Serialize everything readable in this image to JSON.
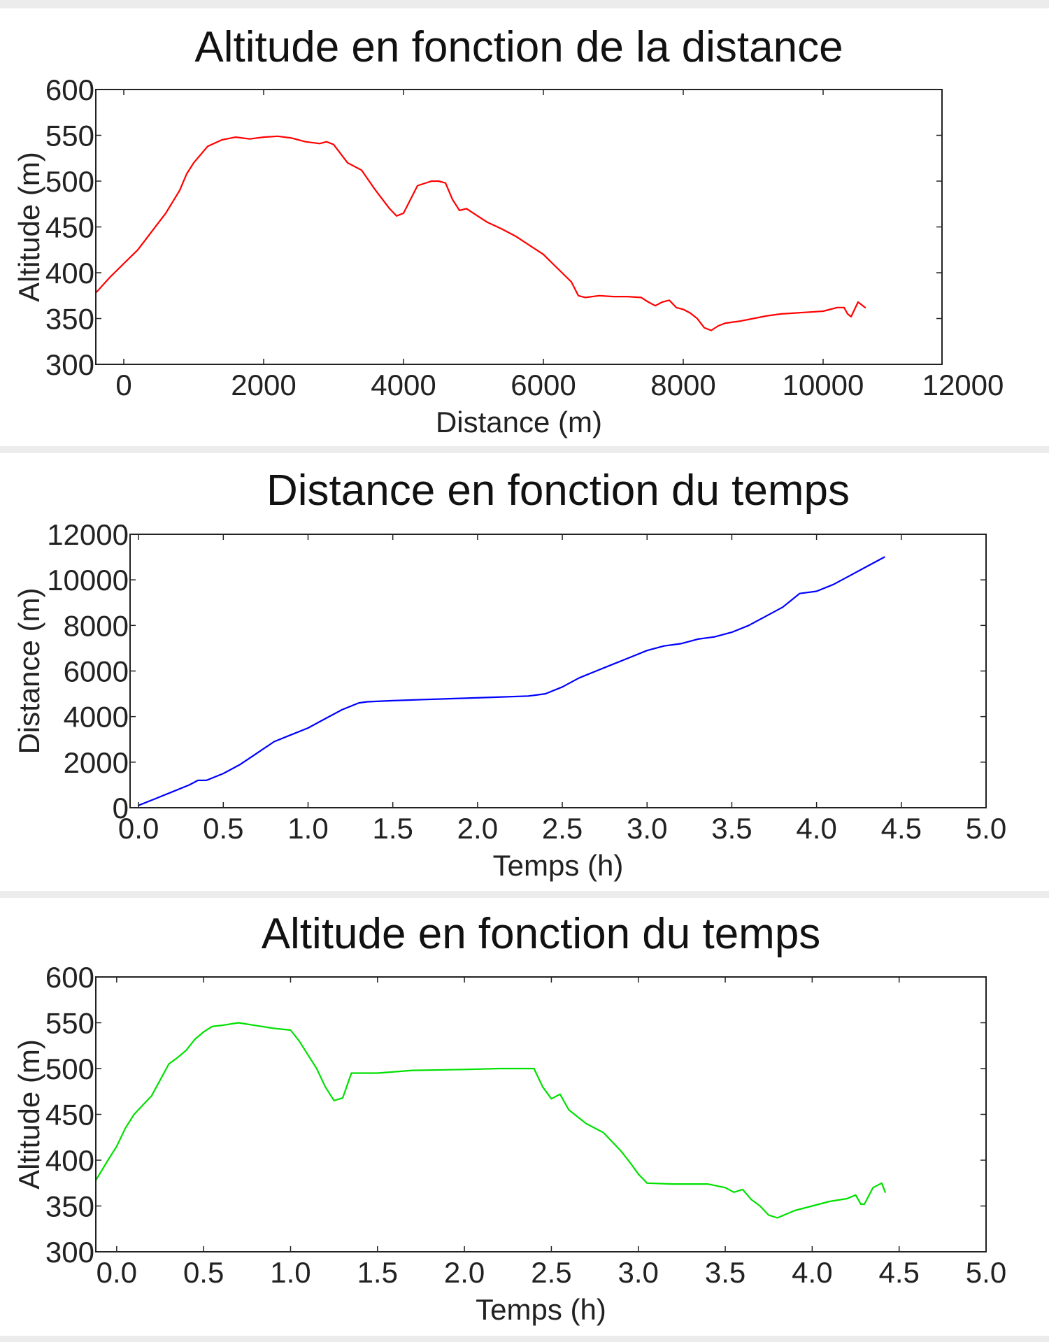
{
  "chart_data": [
    {
      "type": "line",
      "title": "Altitude en fonction de la distance",
      "xlabel": "Distance (m)",
      "ylabel": "Altitude (m)",
      "xlim": [
        -400,
        11700
      ],
      "ylim": [
        300,
        600
      ],
      "xticks": [
        0,
        2000,
        4000,
        6000,
        8000,
        10000,
        12000
      ],
      "yticks": [
        300,
        350,
        400,
        450,
        500,
        550,
        600
      ],
      "grid": false,
      "series": [
        {
          "color": "#ff0000",
          "x": [
            -400,
            -200,
            0,
            200,
            400,
            600,
            800,
            900,
            1000,
            1200,
            1400,
            1600,
            1800,
            2000,
            2200,
            2400,
            2600,
            2800,
            2900,
            3000,
            3200,
            3400,
            3600,
            3800,
            3900,
            4000,
            4200,
            4400,
            4500,
            4600,
            4700,
            4800,
            4900,
            5000,
            5200,
            5400,
            5600,
            5800,
            6000,
            6200,
            6400,
            6500,
            6600,
            6800,
            7000,
            7200,
            7400,
            7500,
            7600,
            7700,
            7800,
            7900,
            8000,
            8100,
            8200,
            8300,
            8400,
            8500,
            8600,
            8800,
            9000,
            9200,
            9400,
            9600,
            9800,
            10000,
            10200,
            10300,
            10350,
            10400,
            10500,
            10600
          ],
          "y": [
            378,
            395,
            410,
            425,
            445,
            465,
            490,
            508,
            520,
            538,
            545,
            548,
            546,
            548,
            549,
            547,
            543,
            541,
            543,
            540,
            520,
            512,
            490,
            470,
            462,
            465,
            495,
            500,
            500,
            498,
            480,
            468,
            470,
            465,
            455,
            448,
            440,
            430,
            420,
            405,
            390,
            375,
            373,
            375,
            374,
            374,
            373,
            368,
            364,
            368,
            370,
            362,
            360,
            356,
            350,
            340,
            337,
            342,
            345,
            347,
            350,
            353,
            355,
            356,
            357,
            358,
            362,
            362,
            355,
            352,
            368,
            362
          ]
        }
      ]
    },
    {
      "type": "line",
      "title": "Distance en fonction du temps",
      "xlabel": "Temps (h)",
      "ylabel": "Distance (m)",
      "xlim": [
        -0.05,
        5.0
      ],
      "ylim": [
        0,
        12000
      ],
      "xticks": [
        0.0,
        0.5,
        1.0,
        1.5,
        2.0,
        2.5,
        3.0,
        3.5,
        4.0,
        4.5,
        5.0
      ],
      "xtick_labels": [
        "0.0",
        "0.5",
        "1.0",
        "1.5",
        "2.0",
        "2.5",
        "3.0",
        "3.5",
        "4.0",
        "4.5",
        "5.0"
      ],
      "yticks": [
        0,
        2000,
        4000,
        6000,
        8000,
        10000,
        12000
      ],
      "grid": false,
      "series": [
        {
          "color": "#0000ff",
          "x": [
            0.0,
            0.1,
            0.2,
            0.3,
            0.35,
            0.4,
            0.5,
            0.6,
            0.7,
            0.8,
            0.9,
            1.0,
            1.1,
            1.2,
            1.3,
            1.35,
            1.5,
            1.7,
            1.9,
            2.1,
            2.3,
            2.4,
            2.5,
            2.6,
            2.7,
            2.8,
            2.9,
            3.0,
            3.1,
            3.2,
            3.3,
            3.4,
            3.5,
            3.6,
            3.7,
            3.8,
            3.85,
            3.9,
            4.0,
            4.1,
            4.2,
            4.3,
            4.4
          ],
          "y": [
            100,
            400,
            700,
            1000,
            1200,
            1200,
            1500,
            1900,
            2400,
            2900,
            3200,
            3500,
            3900,
            4300,
            4600,
            4650,
            4700,
            4750,
            4800,
            4850,
            4900,
            5000,
            5300,
            5700,
            6000,
            6300,
            6600,
            6900,
            7100,
            7200,
            7400,
            7500,
            7700,
            8000,
            8400,
            8800,
            9100,
            9400,
            9500,
            9800,
            10200,
            10600,
            11000
          ]
        }
      ]
    },
    {
      "type": "line",
      "title": "Altitude en fonction du temps",
      "xlabel": "Temps (h)",
      "ylabel": "Altitude (m)",
      "xlim": [
        -0.12,
        5.0
      ],
      "ylim": [
        300,
        600
      ],
      "xticks": [
        0.0,
        0.5,
        1.0,
        1.5,
        2.0,
        2.5,
        3.0,
        3.5,
        4.0,
        4.5,
        5.0
      ],
      "xtick_labels": [
        "0.0",
        "0.5",
        "1.0",
        "1.5",
        "2.0",
        "2.5",
        "3.0",
        "3.5",
        "4.0",
        "4.5",
        "5.0"
      ],
      "yticks": [
        300,
        350,
        400,
        450,
        500,
        550,
        600
      ],
      "grid": false,
      "series": [
        {
          "color": "#00e000",
          "x": [
            -0.12,
            -0.05,
            0.0,
            0.05,
            0.1,
            0.15,
            0.2,
            0.3,
            0.35,
            0.4,
            0.45,
            0.5,
            0.55,
            0.6,
            0.7,
            0.8,
            0.9,
            1.0,
            1.05,
            1.1,
            1.15,
            1.2,
            1.25,
            1.3,
            1.35,
            1.5,
            1.7,
            2.0,
            2.2,
            2.4,
            2.45,
            2.5,
            2.55,
            2.6,
            2.7,
            2.8,
            2.9,
            2.95,
            3.0,
            3.05,
            3.2,
            3.4,
            3.5,
            3.55,
            3.6,
            3.65,
            3.7,
            3.75,
            3.8,
            3.9,
            4.0,
            4.1,
            4.2,
            4.25,
            4.28,
            4.3,
            4.35,
            4.4,
            4.42
          ],
          "y": [
            378,
            400,
            415,
            435,
            450,
            460,
            470,
            505,
            512,
            520,
            532,
            540,
            546,
            547,
            550,
            547,
            544,
            542,
            530,
            515,
            500,
            480,
            465,
            468,
            495,
            495,
            498,
            499,
            500,
            500,
            480,
            467,
            472,
            455,
            440,
            430,
            410,
            398,
            385,
            375,
            374,
            374,
            370,
            365,
            368,
            357,
            350,
            340,
            337,
            345,
            350,
            355,
            358,
            362,
            352,
            352,
            370,
            375,
            365
          ]
        }
      ]
    }
  ]
}
